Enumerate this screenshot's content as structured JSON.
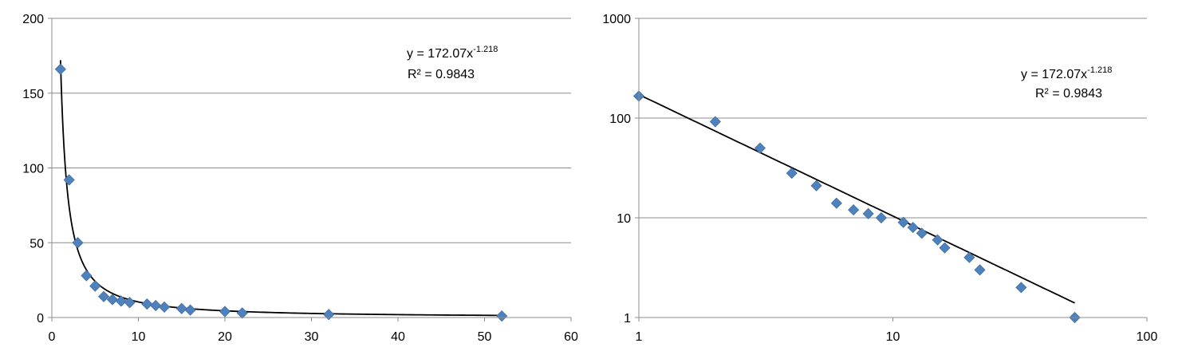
{
  "chart_data": [
    {
      "type": "scatter",
      "title": "",
      "xlabel": "",
      "ylabel": "",
      "xlim": [
        0,
        60
      ],
      "ylim": [
        0,
        200
      ],
      "x_ticks": [
        "0",
        "10",
        "20",
        "30",
        "40",
        "50",
        "60"
      ],
      "y_ticks": [
        "0",
        "50",
        "100",
        "150",
        "200"
      ],
      "x_scale": "linear",
      "y_scale": "linear",
      "grid": "horizontal",
      "legend": "none",
      "marker": "diamond",
      "marker_color": "#4F81BD",
      "trendline_color": "#000000",
      "x": [
        1,
        2,
        3,
        4,
        5,
        6,
        7,
        8,
        9,
        11,
        12,
        13,
        15,
        16,
        20,
        22,
        32,
        52
      ],
      "y": [
        166,
        92,
        50,
        28,
        21,
        14,
        12,
        11,
        10,
        9,
        8,
        7,
        6,
        5,
        4,
        3,
        2,
        1
      ],
      "trendline": {
        "type": "power",
        "coefficient": 172.07,
        "exponent": -1.218,
        "equation_main": "y = 172.07x",
        "equation_exponent": "-1.218",
        "r_squared_label": "R² = 0.9843"
      }
    },
    {
      "type": "scatter",
      "title": "",
      "xlabel": "",
      "ylabel": "",
      "xlim": [
        1,
        100
      ],
      "ylim": [
        1,
        1000
      ],
      "x_ticks": [
        "1",
        "10",
        "100"
      ],
      "y_ticks": [
        "1",
        "10",
        "100",
        "1000"
      ],
      "x_scale": "log",
      "y_scale": "log",
      "grid": "horizontal",
      "legend": "none",
      "marker": "diamond",
      "marker_color": "#4F81BD",
      "trendline_color": "#000000",
      "x": [
        1,
        2,
        3,
        4,
        5,
        6,
        7,
        8,
        9,
        11,
        12,
        13,
        15,
        16,
        20,
        22,
        32,
        52
      ],
      "y": [
        166,
        92,
        50,
        28,
        21,
        14,
        12,
        11,
        10,
        9,
        8,
        7,
        6,
        5,
        4,
        3,
        2,
        1
      ],
      "trendline": {
        "type": "power",
        "coefficient": 172.07,
        "exponent": -1.218,
        "equation_main": "y = 172.07x",
        "equation_exponent": "-1.218",
        "r_squared_label": "R² = 0.9843"
      }
    }
  ]
}
